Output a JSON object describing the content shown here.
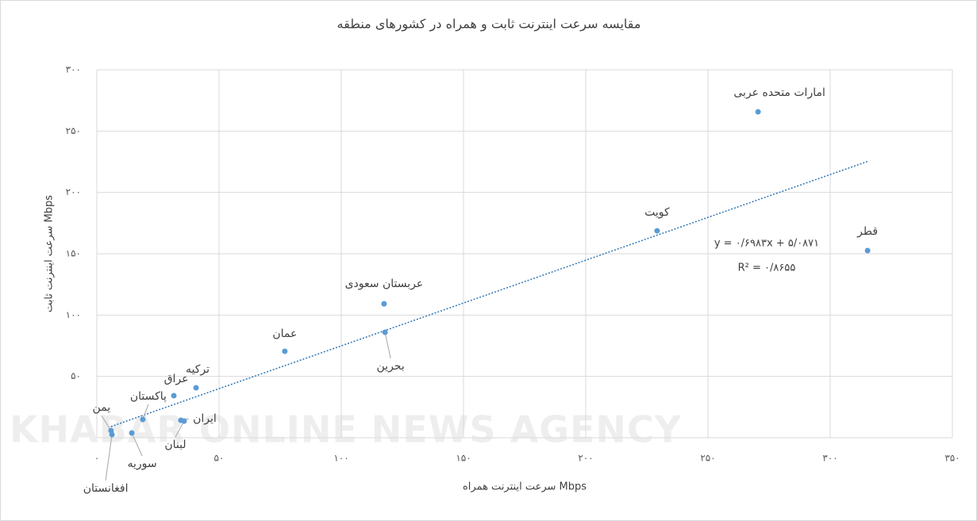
{
  "chart_data": {
    "type": "scatter",
    "title": "مقایسه سرعت اینترنت ثابت و همراه در کشورهای منطقه",
    "x_label": "سرعت اینترنت همراه Mbps",
    "y_label": "سرعت اینترنت ثابت Mbps",
    "watermark": "KHABAR ONLINE NEWS AGENCY",
    "color": "#5b9bd5",
    "grid": true,
    "xlim": [
      0,
      350
    ],
    "ylim": [
      0,
      300
    ],
    "xticks": [
      {
        "value": 0,
        "label": "۰"
      },
      {
        "value": 50,
        "label": "۵۰"
      },
      {
        "value": 100,
        "label": "۱۰۰"
      },
      {
        "value": 150,
        "label": "۱۵۰"
      },
      {
        "value": 200,
        "label": "۲۰۰"
      },
      {
        "value": 250,
        "label": "۲۵۰"
      },
      {
        "value": 300,
        "label": "۳۰۰"
      },
      {
        "value": 350,
        "label": "۳۵۰"
      }
    ],
    "yticks": [
      {
        "value": 50,
        "label": "۵۰"
      },
      {
        "value": 100,
        "label": "۱۰۰"
      },
      {
        "value": 150,
        "label": "۱۵۰"
      },
      {
        "value": 200,
        "label": "۲۰۰"
      },
      {
        "value": 250,
        "label": "۲۵۰"
      },
      {
        "value": 300,
        "label": "۳۰۰"
      }
    ],
    "labels": [
      "امارات متحده عربی",
      "قطر",
      "کویت",
      "عربستان سعودی",
      "بحرین",
      "عمان",
      "ترکیه",
      "عراق",
      "پاکستان",
      "ایران",
      "لبنان",
      "سوریه",
      "یمن",
      "افغانستان"
    ],
    "x": [
      270.5,
      315.3,
      229.2,
      117.5,
      117.9,
      76.9,
      40.6,
      31.5,
      18.8,
      34.4,
      35.7,
      14.3,
      5.8,
      6.2
    ],
    "y": [
      265.7,
      152.6,
      168.7,
      109.2,
      86.0,
      70.5,
      40.7,
      34.3,
      14.9,
      14.2,
      13.6,
      3.9,
      5.8,
      2.6
    ],
    "trendline": {
      "slope": 0.6983,
      "intercept": 5.0871,
      "color": "#2e75b6",
      "equation": "y = ۰/۶۹۸۳x + ۵/۰۸۷۱",
      "r2": "R² = ۰/۸۶۵۵"
    }
  }
}
